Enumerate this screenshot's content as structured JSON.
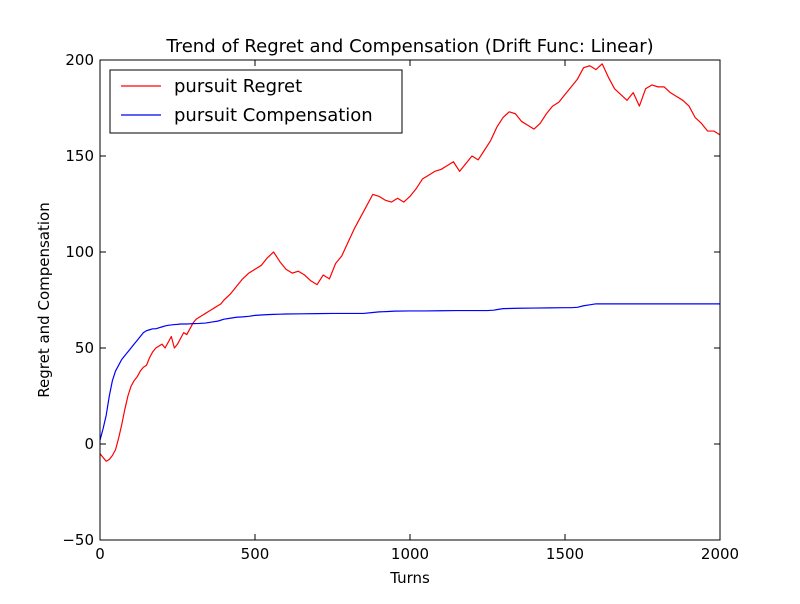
{
  "chart_data": {
    "type": "line",
    "title": "Trend of Regret and Compensation (Drift Func: Linear)",
    "xlabel": "Turns",
    "ylabel": "Regret and Compensation",
    "xlim": [
      0,
      2000
    ],
    "ylim": [
      -50,
      200
    ],
    "xticks": [
      0,
      500,
      1000,
      1500,
      2000
    ],
    "yticks": [
      -50,
      0,
      50,
      100,
      150,
      200
    ],
    "xtick_labels": [
      "0",
      "500",
      "1000",
      "1500",
      "2000"
    ],
    "ytick_labels": [
      "−50",
      "0",
      "50",
      "100",
      "150",
      "200"
    ],
    "grid": false,
    "legend_position": "top-left",
    "series": [
      {
        "name": "pursuit Regret",
        "color": "#ff0000",
        "x": [
          0,
          10,
          20,
          30,
          40,
          50,
          60,
          70,
          80,
          90,
          100,
          110,
          120,
          130,
          140,
          150,
          160,
          170,
          180,
          190,
          200,
          210,
          220,
          230,
          240,
          250,
          260,
          270,
          280,
          290,
          300,
          310,
          320,
          330,
          340,
          350,
          360,
          370,
          380,
          390,
          400,
          420,
          440,
          460,
          480,
          500,
          520,
          540,
          560,
          580,
          600,
          620,
          640,
          660,
          680,
          700,
          720,
          740,
          760,
          780,
          800,
          820,
          840,
          860,
          880,
          900,
          920,
          940,
          960,
          980,
          1000,
          1020,
          1040,
          1060,
          1080,
          1100,
          1120,
          1140,
          1160,
          1180,
          1200,
          1220,
          1240,
          1260,
          1280,
          1300,
          1320,
          1340,
          1360,
          1380,
          1400,
          1420,
          1440,
          1460,
          1480,
          1500,
          1520,
          1540,
          1560,
          1580,
          1600,
          1620,
          1640,
          1660,
          1680,
          1700,
          1720,
          1740,
          1760,
          1780,
          1800,
          1820,
          1840,
          1860,
          1880,
          1900,
          1920,
          1940,
          1960,
          1980,
          2000
        ],
        "y": [
          -5,
          -7,
          -9,
          -8,
          -6,
          -3,
          3,
          10,
          18,
          25,
          30,
          33,
          35,
          38,
          40,
          41,
          45,
          48,
          50,
          51,
          52,
          50,
          53,
          56,
          50,
          52,
          55,
          58,
          57,
          60,
          63,
          65,
          66,
          67,
          68,
          69,
          70,
          71,
          72,
          73,
          75,
          78,
          82,
          86,
          89,
          91,
          93,
          97,
          100,
          95,
          91,
          89,
          90,
          88,
          85,
          83,
          88,
          86,
          94,
          98,
          105,
          112,
          118,
          124,
          130,
          129,
          127,
          126,
          128,
          126,
          129,
          133,
          138,
          140,
          142,
          143,
          145,
          147,
          142,
          146,
          150,
          148,
          153,
          158,
          165,
          170,
          173,
          172,
          168,
          166,
          164,
          167,
          172,
          176,
          178,
          182,
          186,
          190,
          196,
          197,
          195,
          198,
          191,
          185,
          182,
          179,
          183,
          176,
          185,
          187,
          186,
          186,
          183,
          181,
          179,
          176,
          170,
          167,
          163,
          163,
          161
        ]
      },
      {
        "name": "pursuit Compensation",
        "color": "#0000ff",
        "x": [
          0,
          10,
          20,
          30,
          40,
          50,
          60,
          70,
          80,
          90,
          100,
          110,
          120,
          130,
          140,
          150,
          160,
          170,
          180,
          190,
          200,
          210,
          220,
          230,
          240,
          250,
          260,
          270,
          280,
          290,
          300,
          320,
          340,
          360,
          380,
          400,
          420,
          440,
          460,
          480,
          500,
          520,
          540,
          560,
          580,
          600,
          650,
          700,
          750,
          800,
          850,
          880,
          900,
          930,
          950,
          1000,
          1050,
          1100,
          1150,
          1200,
          1250,
          1270,
          1280,
          1300,
          1350,
          1400,
          1450,
          1500,
          1520,
          1540,
          1560,
          1580,
          1600,
          1620,
          1650,
          1700,
          1750,
          1800,
          1850,
          1900,
          1950,
          2000
        ],
        "y": [
          2,
          8,
          15,
          25,
          33,
          38,
          41,
          44,
          46,
          48,
          50,
          52,
          54,
          56,
          58,
          59,
          59.5,
          60,
          60,
          60.5,
          61,
          61.5,
          61.8,
          62,
          62.2,
          62.3,
          62.5,
          62.5,
          62.5,
          62.6,
          62.7,
          62.8,
          63,
          63.5,
          64,
          65,
          65.5,
          66,
          66.2,
          66.5,
          67,
          67.2,
          67.4,
          67.5,
          67.6,
          67.7,
          67.8,
          67.9,
          68,
          68,
          68,
          68.5,
          68.8,
          69,
          69.2,
          69.3,
          69.3,
          69.4,
          69.5,
          69.5,
          69.5,
          69.7,
          70,
          70.5,
          70.7,
          70.8,
          70.9,
          71,
          71,
          71.2,
          72,
          72.5,
          73,
          73,
          73,
          73,
          73,
          73,
          73,
          73,
          73,
          73
        ]
      }
    ]
  }
}
